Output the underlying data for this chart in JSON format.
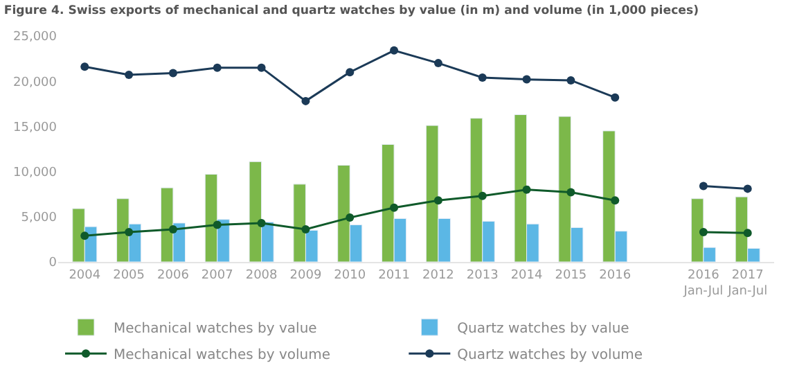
{
  "chart_data": {
    "type": "bar",
    "title": "Figure 4. Swiss exports of mechanical and quartz watches by value (in m) and volume (in 1,000 pieces)",
    "categories": [
      "2004",
      "2005",
      "2006",
      "2007",
      "2008",
      "2009",
      "2010",
      "2011",
      "2012",
      "2013",
      "2014",
      "2015",
      "2016",
      null,
      "2016\nJan-Jul",
      "2017\nJan-Jul"
    ],
    "series": [
      {
        "name": "Mechanical watches by value",
        "color": "#7cb84a",
        "values": [
          5900,
          7000,
          8200,
          9700,
          11100,
          8600,
          10700,
          13000,
          15100,
          15900,
          16300,
          16100,
          14500,
          null,
          7000,
          7200
        ]
      },
      {
        "name": "Quartz watches by value",
        "color": "#5bb7e5",
        "values": [
          3900,
          4200,
          4300,
          4700,
          4400,
          3500,
          4100,
          4800,
          4800,
          4500,
          4200,
          3800,
          3400,
          null,
          1600,
          1500
        ]
      },
      {
        "name": "Mechanical watches by volume",
        "type": "line",
        "color": "#0f5a2a",
        "values": [
          2900,
          3300,
          3600,
          4100,
          4300,
          3600,
          4900,
          6000,
          6800,
          7300,
          8000,
          7700,
          6800,
          null,
          3300,
          3200
        ]
      },
      {
        "name": "Quartz watches by volume",
        "type": "line",
        "color": "#1b3a57",
        "values": [
          21600,
          20700,
          20900,
          21500,
          21500,
          17800,
          21000,
          23400,
          22000,
          20400,
          20200,
          20100,
          18200,
          null,
          8400,
          8100
        ]
      }
    ],
    "ylim": [
      0,
      25000
    ],
    "yticks": [
      {
        "value": 0,
        "label": "0"
      },
      {
        "value": 5000,
        "label": "5,000"
      },
      {
        "value": 10000,
        "label": "10,000"
      },
      {
        "value": 15000,
        "label": "15,000"
      },
      {
        "value": 20000,
        "label": "20,000"
      },
      {
        "value": 25000,
        "label": "25,000"
      }
    ],
    "legend": "bottom",
    "marker": "circle",
    "line_style": "solid"
  }
}
